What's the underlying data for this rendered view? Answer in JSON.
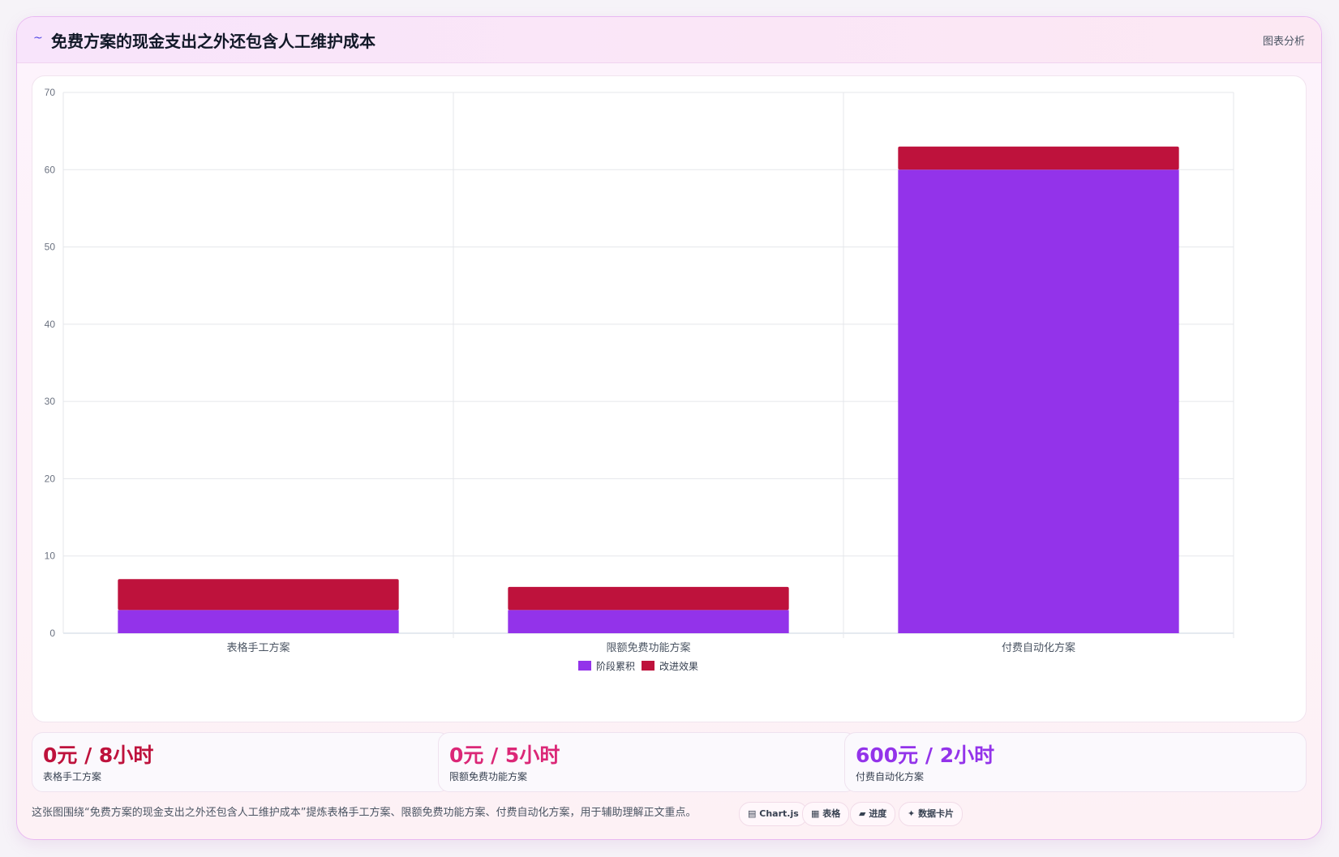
{
  "header": {
    "logo_icon": "~",
    "title": "免费方案的现金支出之外还包含人工维护成本",
    "tag": "图表分析"
  },
  "chart_data": {
    "type": "bar",
    "stacked": true,
    "categories": [
      "表格手工方案",
      "限额免费功能方案",
      "付费自动化方案"
    ],
    "series": [
      {
        "name": "阶段累积",
        "color": "#9333ea",
        "values": [
          3,
          3,
          60
        ]
      },
      {
        "name": "改进效果",
        "color": "#be123c",
        "values": [
          4,
          3,
          3
        ]
      }
    ],
    "ylim": [
      0,
      70
    ],
    "yticks": [
      0,
      10,
      20,
      30,
      40,
      50,
      60,
      70
    ],
    "grid": true,
    "legend": "bottom"
  },
  "kpis": [
    {
      "value": "0元 / 8小时",
      "label": "表格手工方案",
      "color": "#be123c"
    },
    {
      "value": "0元 / 5小时",
      "label": "限额免费功能方案",
      "color": "#db2777"
    },
    {
      "value": "600元 / 2小时",
      "label": "付费自动化方案",
      "color": "#9333ea"
    }
  ],
  "footer": {
    "text": "这张图围绕“免费方案的现金支出之外还包含人工维护成本”提炼表格手工方案、限额免费功能方案、付费自动化方案，用于辅助理解正文重点。"
  },
  "chips": [
    {
      "icon": "▤",
      "label": "Chart.js"
    },
    {
      "icon": "▦",
      "label": "表格"
    },
    {
      "icon": "▰",
      "label": "进度"
    },
    {
      "icon": "✦",
      "label": "数据卡片"
    }
  ]
}
